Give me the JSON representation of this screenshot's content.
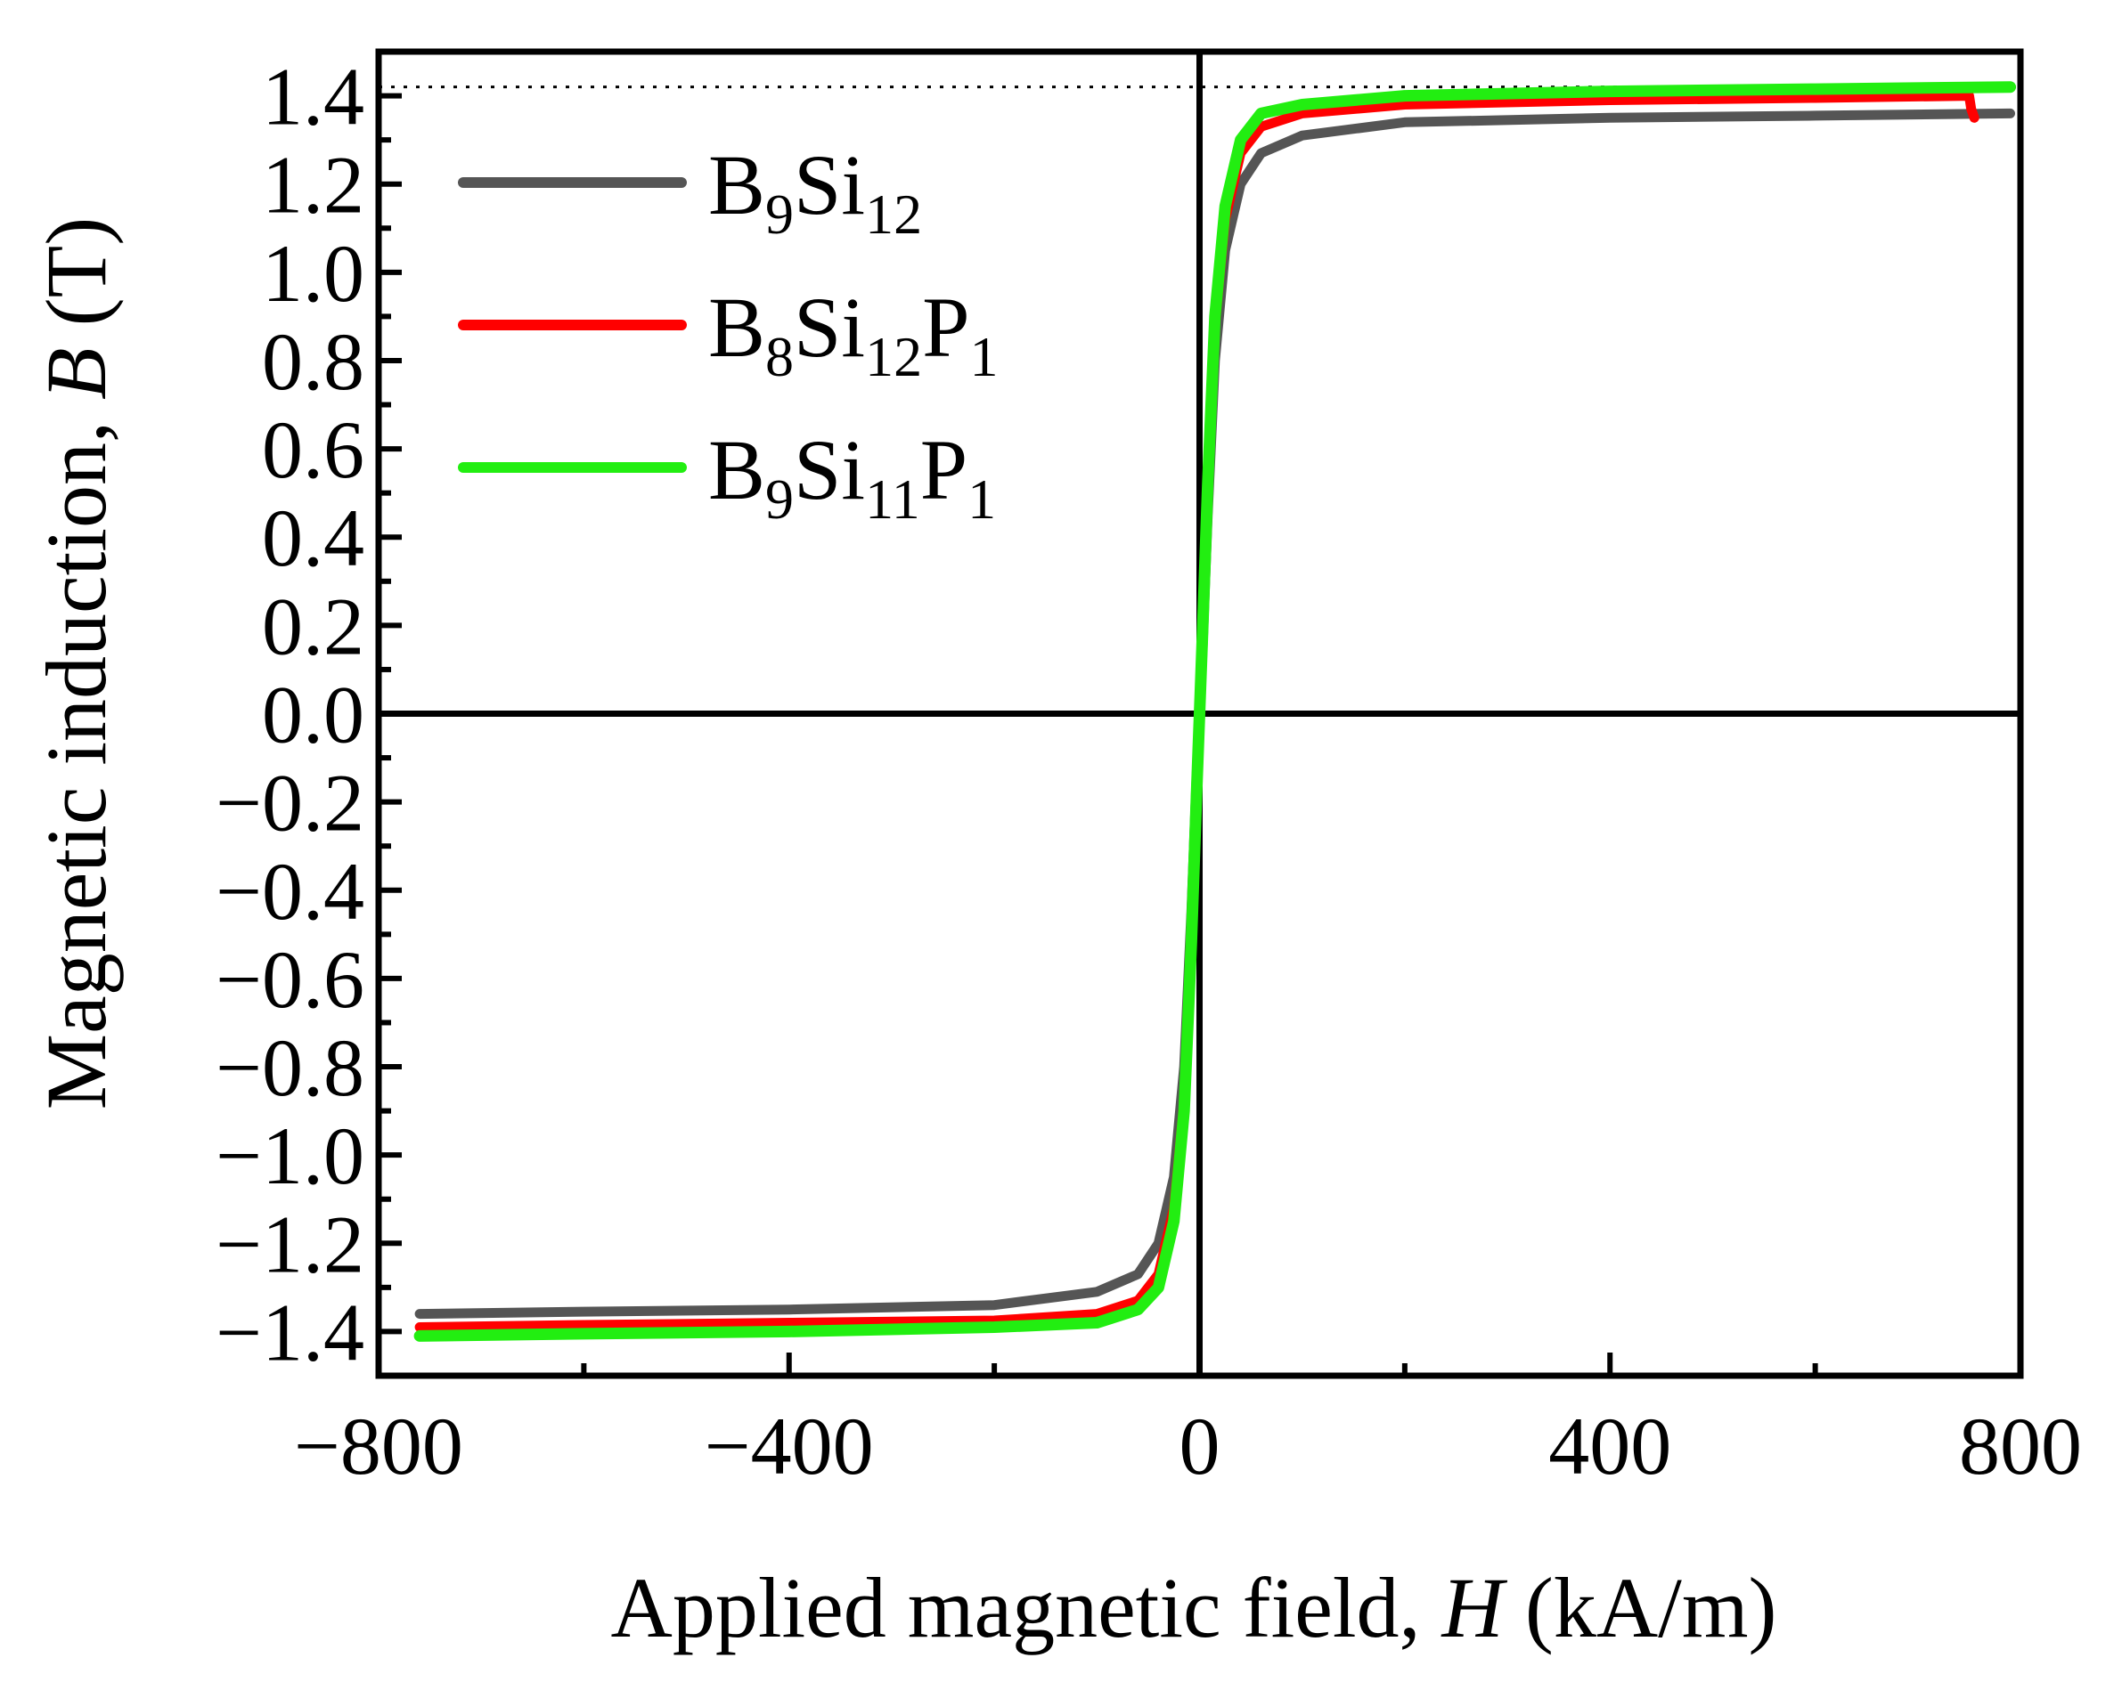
{
  "chart_data": {
    "type": "line",
    "title": "",
    "xlabel": {
      "prefix": "Applied magnetic field, ",
      "symbol": "H",
      "suffix": " (kA/m)"
    },
    "ylabel": {
      "prefix": "Magnetic induction, ",
      "symbol": "B",
      "suffix": " (T)"
    },
    "xlim": [
      -800,
      800
    ],
    "ylim": [
      -1.5,
      1.5
    ],
    "x_ticks": [
      -800,
      -400,
      0,
      400,
      800
    ],
    "x_tick_labels": [
      "−800",
      "−400",
      "0",
      "400",
      "800"
    ],
    "y_ticks": [
      1.4,
      1.2,
      1.0,
      0.8,
      0.6,
      0.4,
      0.2,
      0.0,
      -0.2,
      -0.4,
      -0.6,
      -0.8,
      -1.0,
      -1.2,
      -1.4
    ],
    "y_tick_labels": [
      "1.4",
      "1.2",
      "1.0",
      "0.8",
      "0.6",
      "0.4",
      "0.2",
      "0.0",
      "−0.2",
      "−0.4",
      "−0.6",
      "−0.8",
      "−1.0",
      "−1.2",
      "−1.4"
    ],
    "reference_line_y": 1.42,
    "legend_position": "top-left",
    "series": [
      {
        "name": "B9Si12",
        "label": {
          "base": "B",
          "s1": "9",
          "el2": "Si",
          "s2": "12",
          "el3": "",
          "s3": ""
        },
        "color": "#555555",
        "x": [
          -760,
          -600,
          -400,
          -200,
          -100,
          -60,
          -40,
          -25,
          -15,
          -8,
          -3,
          0,
          3,
          8,
          15,
          25,
          40,
          60,
          100,
          200,
          400,
          600,
          790
        ],
        "y": [
          -1.36,
          -1.355,
          -1.35,
          -1.34,
          -1.31,
          -1.27,
          -1.2,
          -1.05,
          -0.8,
          -0.45,
          -0.15,
          0.0,
          0.15,
          0.45,
          0.8,
          1.05,
          1.2,
          1.27,
          1.31,
          1.34,
          1.35,
          1.355,
          1.36
        ]
      },
      {
        "name": "B8Si12P1",
        "label": {
          "base": "B",
          "s1": "8",
          "el2": "Si",
          "s2": "12",
          "el3": "P",
          "s3": "1"
        },
        "color": "#ff0000",
        "x": [
          -760,
          -600,
          -400,
          -200,
          -100,
          -60,
          -40,
          -25,
          -15,
          -8,
          -3,
          0,
          3,
          8,
          15,
          25,
          40,
          60,
          100,
          200,
          400,
          600,
          750,
          752,
          755
        ],
        "y": [
          -1.39,
          -1.385,
          -1.38,
          -1.375,
          -1.36,
          -1.33,
          -1.27,
          -1.12,
          -0.88,
          -0.5,
          -0.18,
          0.0,
          0.18,
          0.5,
          0.88,
          1.12,
          1.27,
          1.33,
          1.36,
          1.38,
          1.39,
          1.395,
          1.4,
          1.37,
          1.35
        ]
      },
      {
        "name": "B9Si11P1",
        "label": {
          "base": "B",
          "s1": "9",
          "el2": "Si",
          "s2": "11",
          "el3": "P",
          "s3": "1"
        },
        "color": "#22ee11",
        "x": [
          -760,
          -600,
          -400,
          -200,
          -100,
          -60,
          -40,
          -25,
          -15,
          -8,
          -3,
          0,
          3,
          8,
          15,
          25,
          40,
          60,
          100,
          200,
          400,
          600,
          790
        ],
        "y": [
          -1.41,
          -1.405,
          -1.4,
          -1.39,
          -1.38,
          -1.35,
          -1.3,
          -1.15,
          -0.9,
          -0.52,
          -0.19,
          0.0,
          0.19,
          0.52,
          0.9,
          1.15,
          1.3,
          1.36,
          1.38,
          1.4,
          1.41,
          1.415,
          1.42
        ]
      }
    ]
  }
}
